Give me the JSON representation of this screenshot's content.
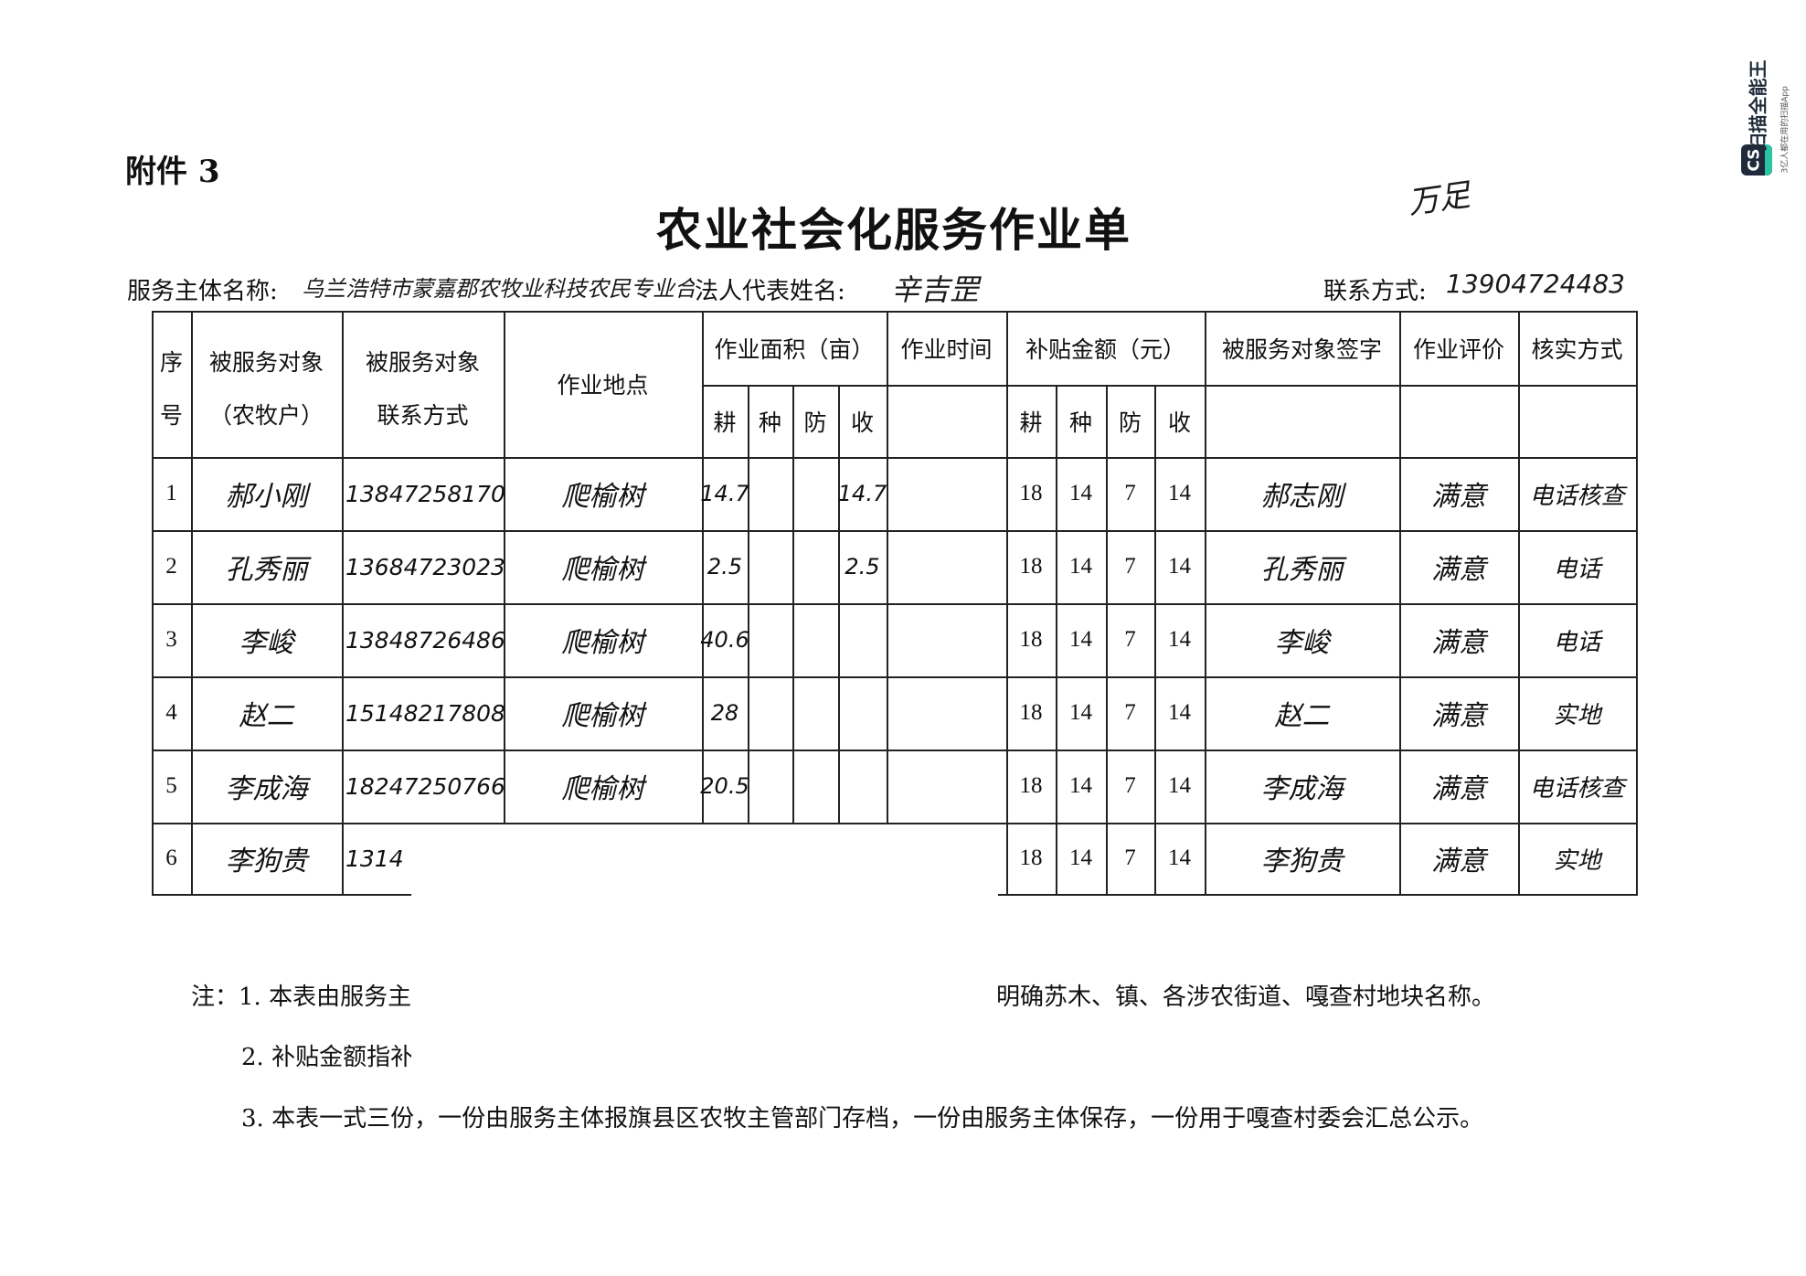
{
  "attachment_label": "附件 3",
  "title": "农业社会化服务作业单",
  "header": {
    "provider_label": "服务主体名称:",
    "provider_value": "乌兰浩特市蒙嘉郡农牧业科技农民专业合作社",
    "legal_rep_label": "法人代表姓名:",
    "legal_rep_value": "辛吉罡",
    "contact_label": "联系方式:",
    "contact_value": "13904724483",
    "corner_note": "万足"
  },
  "table": {
    "headers": {
      "seq": [
        "序",
        "号"
      ],
      "client": [
        "被服务对象",
        "（农牧户）"
      ],
      "client_contact": [
        "被服务对象",
        "联系方式"
      ],
      "location": "作业地点",
      "area": "作业面积（亩）",
      "time": "作业时间",
      "subsidy": "补贴金额（元）",
      "signature": "被服务对象签字",
      "evaluation": "作业评价",
      "verification": "核实方式",
      "sub": [
        "耕",
        "种",
        "防",
        "收"
      ]
    },
    "rows": [
      {
        "seq": "1",
        "name": "郝小刚",
        "phone": "13847258170",
        "location": "爬榆树",
        "area": [
          "14.7",
          "",
          "",
          "14.7"
        ],
        "time": "",
        "subsidy": [
          "18",
          "14",
          "7",
          "14"
        ],
        "signature": "郝志刚",
        "evaluation": "满意",
        "verification": "电话核查"
      },
      {
        "seq": "2",
        "name": "孔秀丽",
        "phone": "13684723023",
        "location": "爬榆树",
        "area": [
          "2.5",
          "",
          "",
          "2.5"
        ],
        "time": "",
        "subsidy": [
          "18",
          "14",
          "7",
          "14"
        ],
        "signature": "孔秀丽",
        "evaluation": "满意",
        "verification": "电话"
      },
      {
        "seq": "3",
        "name": "李峻",
        "phone": "13848726486",
        "location": "爬榆树",
        "area": [
          "40.6",
          "",
          "",
          ""
        ],
        "time": "",
        "subsidy": [
          "18",
          "14",
          "7",
          "14"
        ],
        "signature": "李峻",
        "evaluation": "满意",
        "verification": "电话"
      },
      {
        "seq": "4",
        "name": "赵二",
        "phone": "15148217808",
        "location": "爬榆树",
        "area": [
          "28",
          "",
          "",
          ""
        ],
        "time": "",
        "subsidy": [
          "18",
          "14",
          "7",
          "14"
        ],
        "signature": "赵二",
        "evaluation": "满意",
        "verification": "实地"
      },
      {
        "seq": "5",
        "name": "李成海",
        "phone": "18247250766",
        "location": "爬榆树",
        "area": [
          "20.5",
          "",
          "",
          ""
        ],
        "time": "",
        "subsidy": [
          "18",
          "14",
          "7",
          "14"
        ],
        "signature": "李成海",
        "evaluation": "满意",
        "verification": "电话核查"
      },
      {
        "seq": "6",
        "name": "李狗贵",
        "phone": "1314",
        "location": "",
        "area": [
          "",
          "",
          "",
          ""
        ],
        "time": "",
        "subsidy": [
          "18",
          "14",
          "7",
          "14"
        ],
        "signature": "李狗贵",
        "evaluation": "满意",
        "verification": "实地"
      }
    ]
  },
  "notes": {
    "n1_left": "注：1. 本表由服务主",
    "n1_right": "明确苏木、镇、各涉农街道、嘎查村地块名称。",
    "n2": "2. 补贴金额指补",
    "n3": "3. 本表一式三份，一份由服务主体报旗县区农牧主管部门存档，一份由服务主体保存，一份用于嘎查村委会汇总公示。"
  },
  "watermark": {
    "brand": "扫描全能王",
    "tagline": "3亿人都在用的扫描App",
    "logo_text": "CS",
    "accent": "#2bc3a0"
  }
}
